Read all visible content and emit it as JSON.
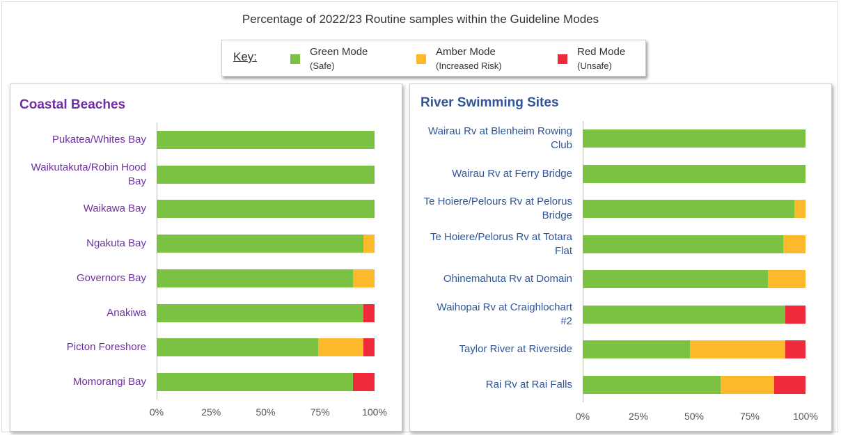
{
  "header": {
    "title": "Percentage of 2022/23 Routine samples within the Guideline Modes",
    "key_label": "Key:"
  },
  "chart_data": [
    {
      "type": "stacked_bar_horizontal",
      "title": "Coastal Beaches",
      "categories": [
        "Pukatea/Whites Bay",
        "Waikutakuta/Robin Hood Bay",
        "Waikawa Bay",
        "Ngakuta Bay",
        "Governors Bay",
        "Anakiwa",
        "Picton Foreshore",
        "Momorangi Bay"
      ],
      "series": [
        {
          "name": "Green Mode",
          "note": "(Safe)",
          "color": "#7cc242",
          "values": [
            100,
            100,
            100,
            95,
            90,
            95,
            74,
            90
          ]
        },
        {
          "name": "Amber Mode",
          "note": "(Increased Risk)",
          "color": "#fbb92b",
          "values": [
            0,
            0,
            0,
            5,
            10,
            0,
            21,
            0
          ]
        },
        {
          "name": "Red Mode",
          "note": "(Unsafe)",
          "color": "#ee2a3b",
          "values": [
            0,
            0,
            0,
            0,
            0,
            5,
            5,
            10
          ]
        }
      ],
      "xlim": [
        0,
        100
      ],
      "xticks": [
        {
          "value": 0,
          "label": "0%"
        },
        {
          "value": 25,
          "label": "25%"
        },
        {
          "value": 50,
          "label": "50%"
        },
        {
          "value": 75,
          "label": "75%"
        },
        {
          "value": 100,
          "label": "100%"
        }
      ],
      "grid": false,
      "title_color": "#7030a0",
      "label_color": "#7030a0"
    },
    {
      "type": "stacked_bar_horizontal",
      "title": "River Swimming Sites",
      "categories": [
        "Wairau Rv at Blenheim Rowing Club",
        "Wairau Rv at Ferry Bridge",
        "Te Hoiere/Pelours Rv at Pelorus Bridge",
        "Te Hoiere/Pelorus Rv at Totara Flat",
        "Ohinemahuta Rv at Domain",
        "Waihopai Rv at Craighlochart #2",
        "Taylor River at Riverside",
        "Rai Rv at Rai Falls"
      ],
      "series": [
        {
          "name": "Green Mode",
          "note": "(Safe)",
          "color": "#7cc242",
          "values": [
            100,
            100,
            95,
            90,
            83,
            91,
            48,
            62
          ]
        },
        {
          "name": "Amber Mode",
          "note": "(Increased Risk)",
          "color": "#fbb92b",
          "values": [
            0,
            0,
            5,
            10,
            17,
            0,
            43,
            24
          ]
        },
        {
          "name": "Red Mode",
          "note": "(Unsafe)",
          "color": "#ee2a3b",
          "values": [
            0,
            0,
            0,
            0,
            0,
            9,
            9,
            14
          ]
        }
      ],
      "xlim": [
        0,
        100
      ],
      "xticks": [
        {
          "value": 0,
          "label": "0%"
        },
        {
          "value": 25,
          "label": "25%"
        },
        {
          "value": 50,
          "label": "50%"
        },
        {
          "value": 75,
          "label": "75%"
        },
        {
          "value": 100,
          "label": "100%"
        }
      ],
      "grid": false,
      "title_color": "#2f5597",
      "label_color": "#2f5597"
    }
  ]
}
